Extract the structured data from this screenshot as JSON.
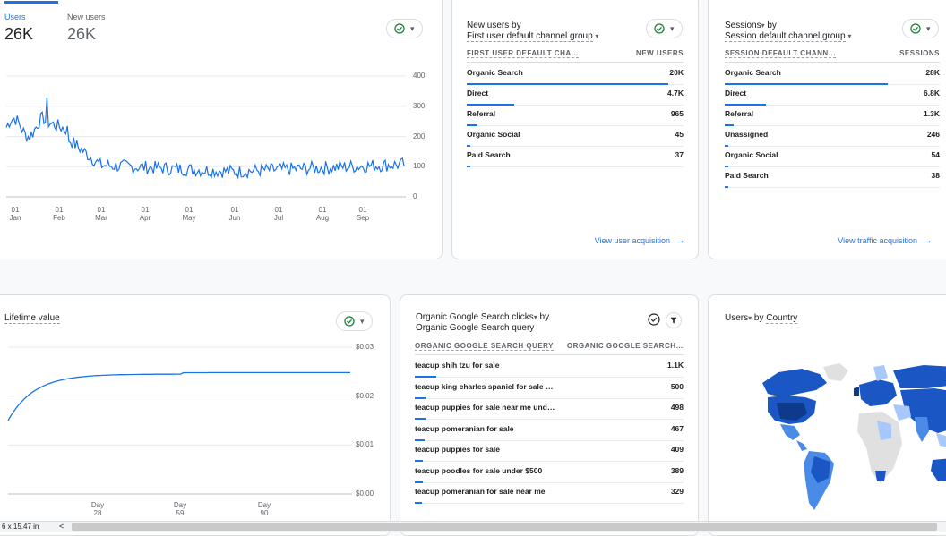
{
  "users_card": {
    "tabs": [
      {
        "label": "Users",
        "value": "26K"
      },
      {
        "label": "New users",
        "value": "26K"
      }
    ],
    "y_ticks": [
      "400",
      "300",
      "200",
      "100",
      "0"
    ],
    "x_ticks": [
      {
        "top": "01",
        "bottom": "Jan"
      },
      {
        "top": "01",
        "bottom": "Feb"
      },
      {
        "top": "01",
        "bottom": "Mar"
      },
      {
        "top": "01",
        "bottom": "Apr"
      },
      {
        "top": "01",
        "bottom": "May"
      },
      {
        "top": "01",
        "bottom": "Jun"
      },
      {
        "top": "01",
        "bottom": "Jul"
      },
      {
        "top": "01",
        "bottom": "Aug"
      },
      {
        "top": "01",
        "bottom": "Sep"
      }
    ]
  },
  "new_users_card": {
    "title_line1": "New users by",
    "title_line2": "First user default channel group",
    "col1": "FIRST USER DEFAULT CHA…",
    "col2": "NEW USERS",
    "rows": [
      {
        "label": "Organic Search",
        "value": "20K",
        "share": 0.93
      },
      {
        "label": "Direct",
        "value": "4.7K",
        "share": 0.22
      },
      {
        "label": "Referral",
        "value": "965",
        "share": 0.05
      },
      {
        "label": "Organic Social",
        "value": "45",
        "share": 0.01
      },
      {
        "label": "Paid Search",
        "value": "37",
        "share": 0.01
      }
    ],
    "link": "View user acquisition"
  },
  "sessions_card": {
    "title_line1a": "Sessions",
    "title_line1b": " by",
    "title_line2": "Session default channel group",
    "col1": "SESSION DEFAULT CHANN…",
    "col2": "SESSIONS",
    "rows": [
      {
        "label": "Organic Search",
        "value": "28K",
        "share": 0.76
      },
      {
        "label": "Direct",
        "value": "6.8K",
        "share": 0.19
      },
      {
        "label": "Referral",
        "value": "1.3K",
        "share": 0.04
      },
      {
        "label": "Unassigned",
        "value": "246",
        "share": 0.01
      },
      {
        "label": "Organic Social",
        "value": "54",
        "share": 0.005
      },
      {
        "label": "Paid Search",
        "value": "38",
        "share": 0.005
      }
    ],
    "link": "View traffic acquisition"
  },
  "ltv_card": {
    "title": "Lifetime value",
    "y_ticks": [
      "$0.03",
      "$0.02",
      "$0.01",
      "$0.00"
    ],
    "x_ticks": [
      {
        "top": "Day",
        "bottom": "28"
      },
      {
        "top": "Day",
        "bottom": "59"
      },
      {
        "top": "Day",
        "bottom": "90"
      }
    ]
  },
  "search_card": {
    "title_line1a": "Organic Google Search clicks",
    "title_line1b": " by",
    "title_line2": "Organic Google Search query",
    "col1": "ORGANIC GOOGLE SEARCH QUERY",
    "col2": "ORGANIC GOOGLE SEARCH…",
    "rows": [
      {
        "label": "teacup shih tzu for sale",
        "value": "1.1K",
        "share": 0.08
      },
      {
        "label": "teacup king charles spaniel for sale …",
        "value": "500",
        "share": 0.04
      },
      {
        "label": "teacup puppies for sale near me und…",
        "value": "498",
        "share": 0.04
      },
      {
        "label": "teacup pomeranian for sale",
        "value": "467",
        "share": 0.035
      },
      {
        "label": "teacup puppies for sale",
        "value": "409",
        "share": 0.03
      },
      {
        "label": "teacup poodles for sale under $500",
        "value": "389",
        "share": 0.03
      },
      {
        "label": "teacup pomeranian for sale near me",
        "value": "329",
        "share": 0.025
      }
    ]
  },
  "country_card": {
    "title_a": "Users",
    "title_b": " by ",
    "title_c": "Country"
  },
  "status_bar": {
    "size": "6 x 15.47 in",
    "arrow": "<"
  },
  "colors": {
    "accent": "#1a73e8",
    "map_dark": "#1a56c4",
    "map_mid": "#4a8be8",
    "map_light": "#a8c7fa",
    "map_none": "#e0e0e0"
  }
}
